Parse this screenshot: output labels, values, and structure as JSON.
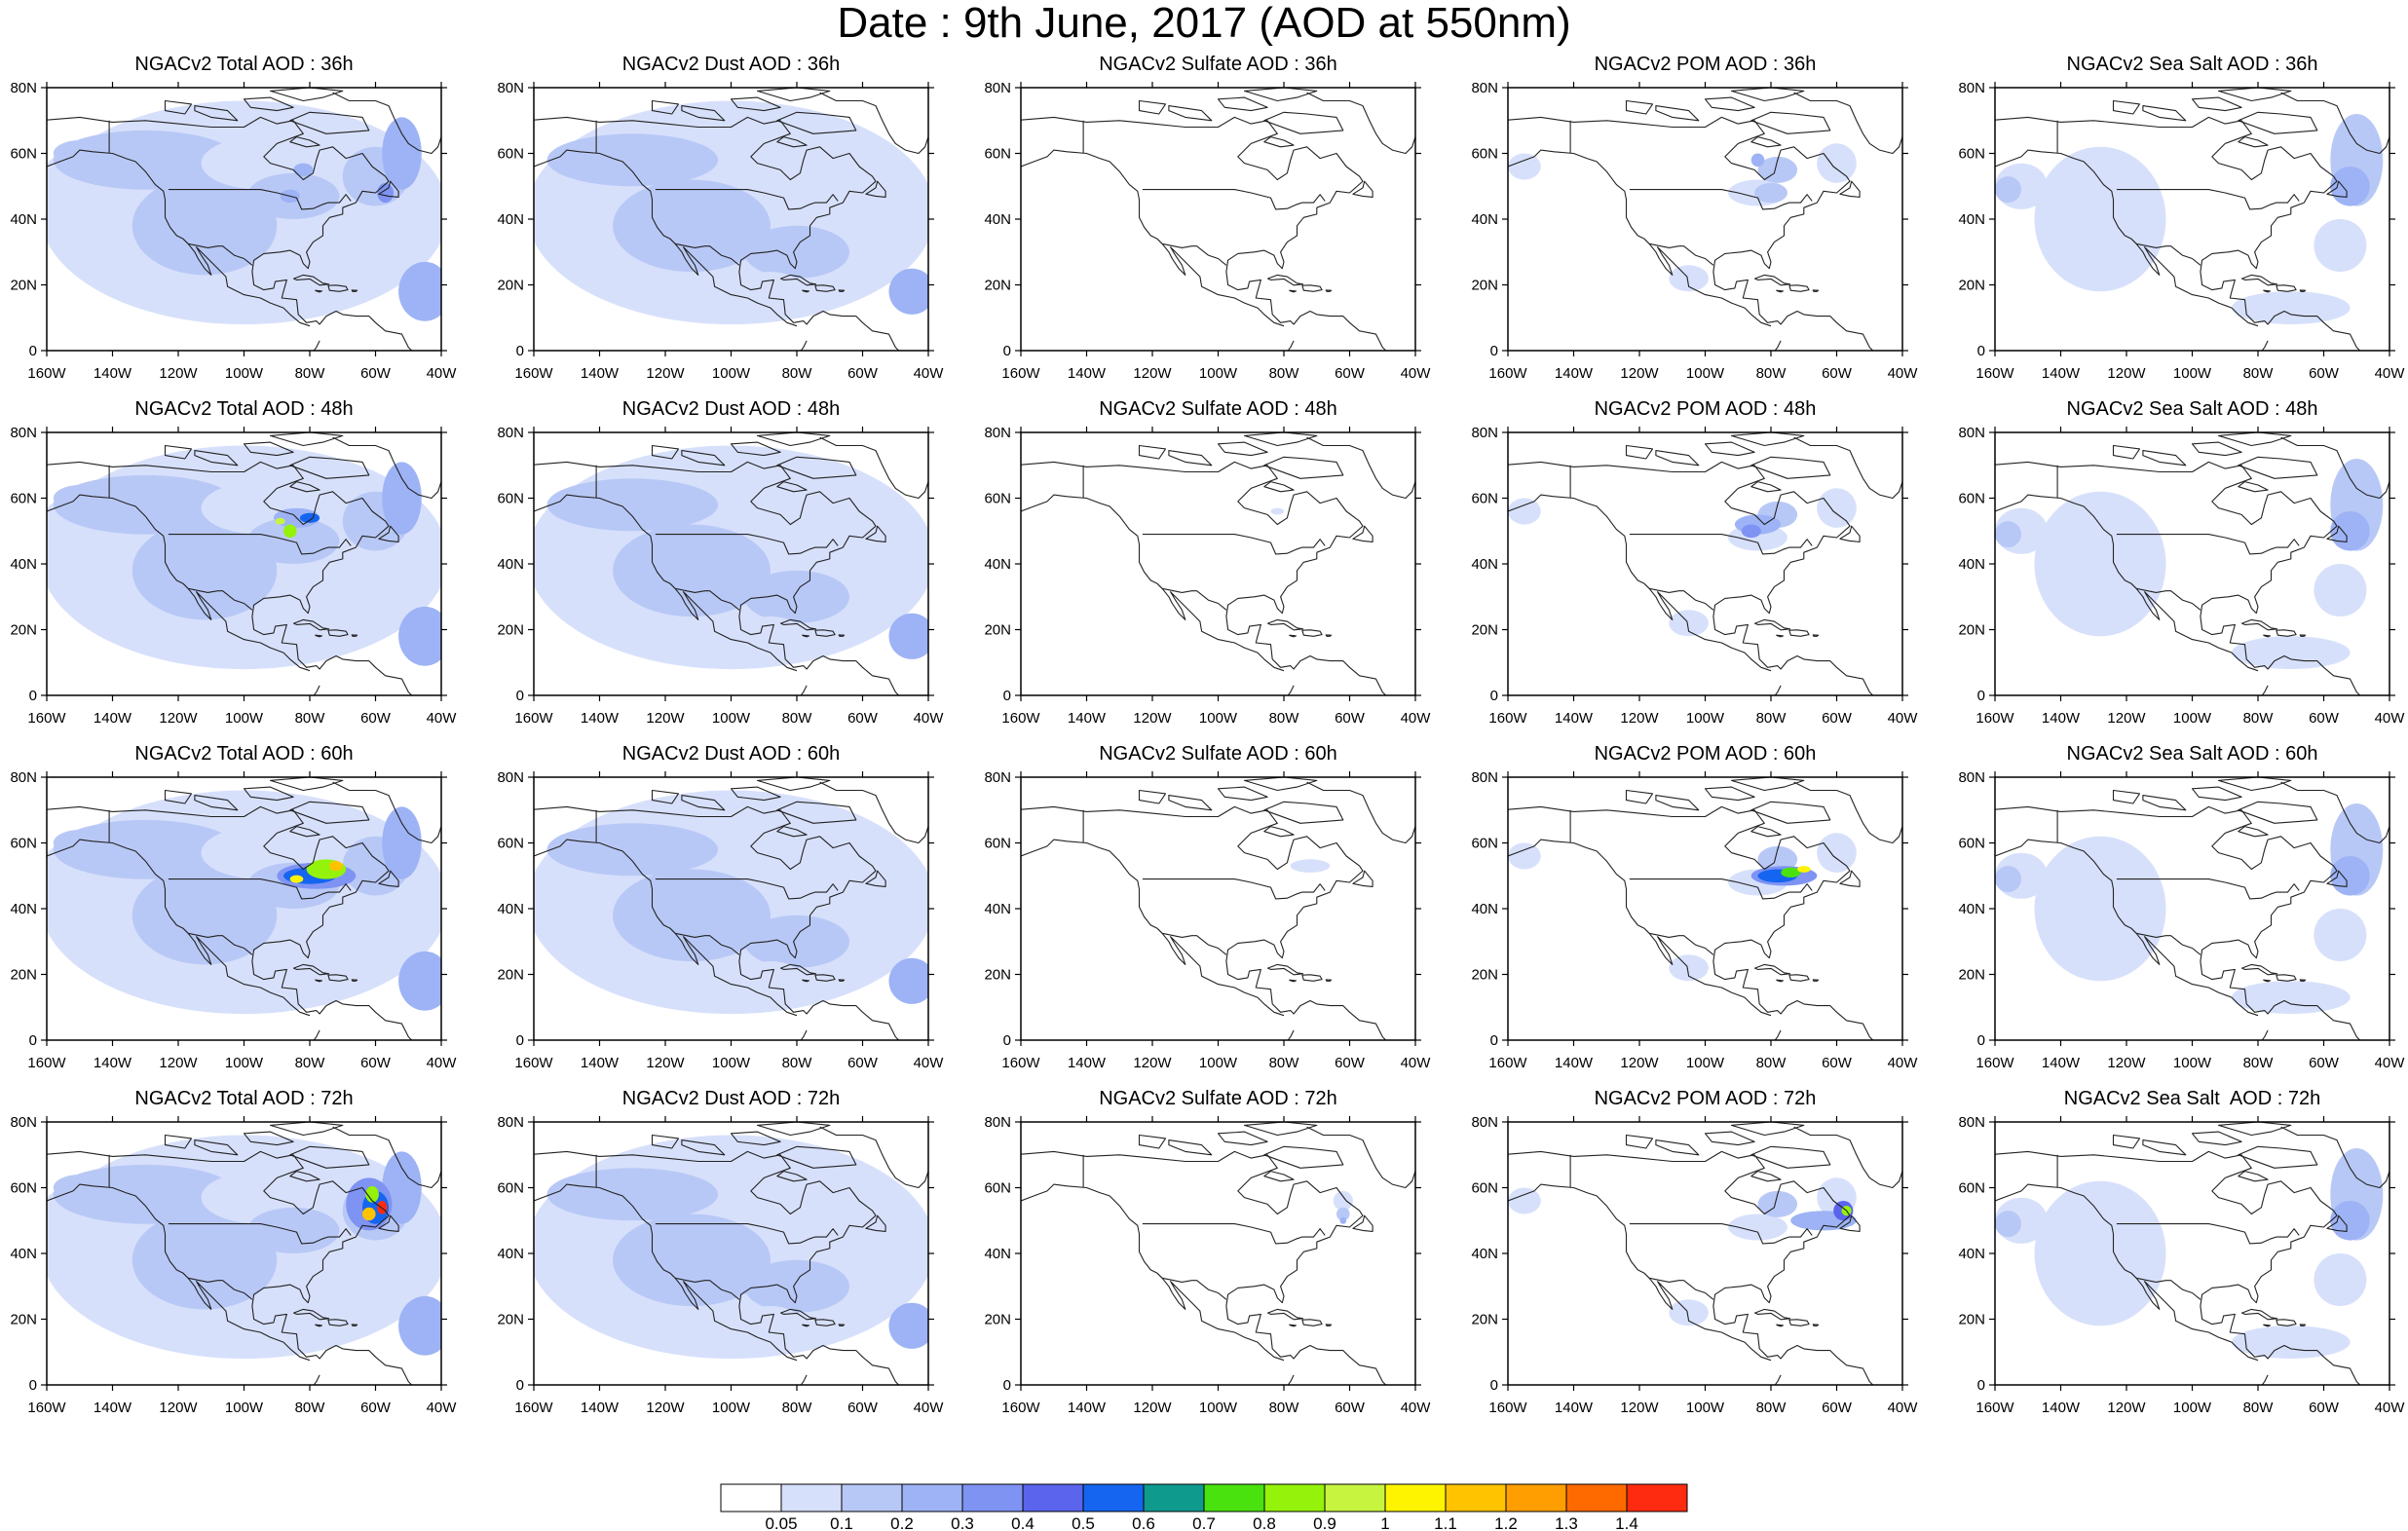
{
  "main_title": "Date : 9th June, 2017 (AOD at 550nm)",
  "lat_ticks": [
    "80N",
    "60N",
    "40N",
    "20N",
    "0"
  ],
  "lon_ticks": [
    "160W",
    "140W",
    "120W",
    "100W",
    "80W",
    "60W",
    "40W"
  ],
  "columns": [
    "Total AOD",
    "Dust AOD",
    "Sulfate AOD",
    "POM AOD",
    "Sea Salt AOD"
  ],
  "rows": [
    "36h",
    "48h",
    "60h",
    "72h"
  ],
  "panels": [
    [
      {
        "title": "NGACv2 Total AOD : 36h",
        "field": "total",
        "max_level": 4
      },
      {
        "title": "NGACv2 Dust AOD : 36h",
        "field": "dust",
        "max_level": 2
      },
      {
        "title": "NGACv2 Sulfate AOD : 36h",
        "field": "sulfate",
        "max_level": 0
      },
      {
        "title": "NGACv2 POM AOD : 36h",
        "field": "pom",
        "max_level": 3
      },
      {
        "title": "NGACv2 Sea Salt AOD : 36h",
        "field": "seasalt",
        "max_level": 4
      }
    ],
    [
      {
        "title": "NGACv2 Total AOD : 48h",
        "field": "total",
        "max_level": 10
      },
      {
        "title": "NGACv2 Dust AOD : 48h",
        "field": "dust",
        "max_level": 2
      },
      {
        "title": "NGACv2 Sulfate AOD : 48h",
        "field": "sulfate",
        "max_level": 1
      },
      {
        "title": "NGACv2 POM AOD : 48h",
        "field": "pom",
        "max_level": 4
      },
      {
        "title": "NGACv2 Sea Salt AOD : 48h",
        "field": "seasalt",
        "max_level": 4
      }
    ],
    [
      {
        "title": "NGACv2 Total AOD : 60h",
        "field": "total",
        "max_level": 12
      },
      {
        "title": "NGACv2 Dust AOD : 60h",
        "field": "dust",
        "max_level": 2
      },
      {
        "title": "NGACv2 Sulfate AOD : 60h",
        "field": "sulfate",
        "max_level": 1
      },
      {
        "title": "NGACv2 POM AOD : 60h",
        "field": "pom",
        "max_level": 11
      },
      {
        "title": "NGACv2 Sea Salt AOD : 60h",
        "field": "seasalt",
        "max_level": 4
      }
    ],
    [
      {
        "title": "NGACv2 Total AOD : 72h",
        "field": "total",
        "max_level": 15
      },
      {
        "title": "NGACv2 Dust AOD : 72h",
        "field": "dust",
        "max_level": 2
      },
      {
        "title": "NGACv2 Sulfate AOD : 72h",
        "field": "sulfate",
        "max_level": 3
      },
      {
        "title": "NGACv2 POM AOD : 72h",
        "field": "pom",
        "max_level": 9
      },
      {
        "title": "NGACv2 Sea Salt  AOD : 72h",
        "field": "seasalt",
        "max_level": 4
      }
    ]
  ],
  "colorbar": {
    "labels": [
      "0.05",
      "0.1",
      "0.2",
      "0.3",
      "0.4",
      "0.5",
      "0.6",
      "0.7",
      "0.8",
      "0.9",
      "1",
      "1.1",
      "1.2",
      "1.3",
      "1.4"
    ],
    "colors": [
      "#ffffff",
      "#d7e0fb",
      "#b8c8f6",
      "#9db3f5",
      "#7f93f3",
      "#5a64ec",
      "#1565f0",
      "#0f9a8e",
      "#49e20f",
      "#95f20a",
      "#c7f53f",
      "#fff400",
      "#ffc300",
      "#ff9e00",
      "#ff6a00",
      "#ff2b10"
    ]
  }
}
